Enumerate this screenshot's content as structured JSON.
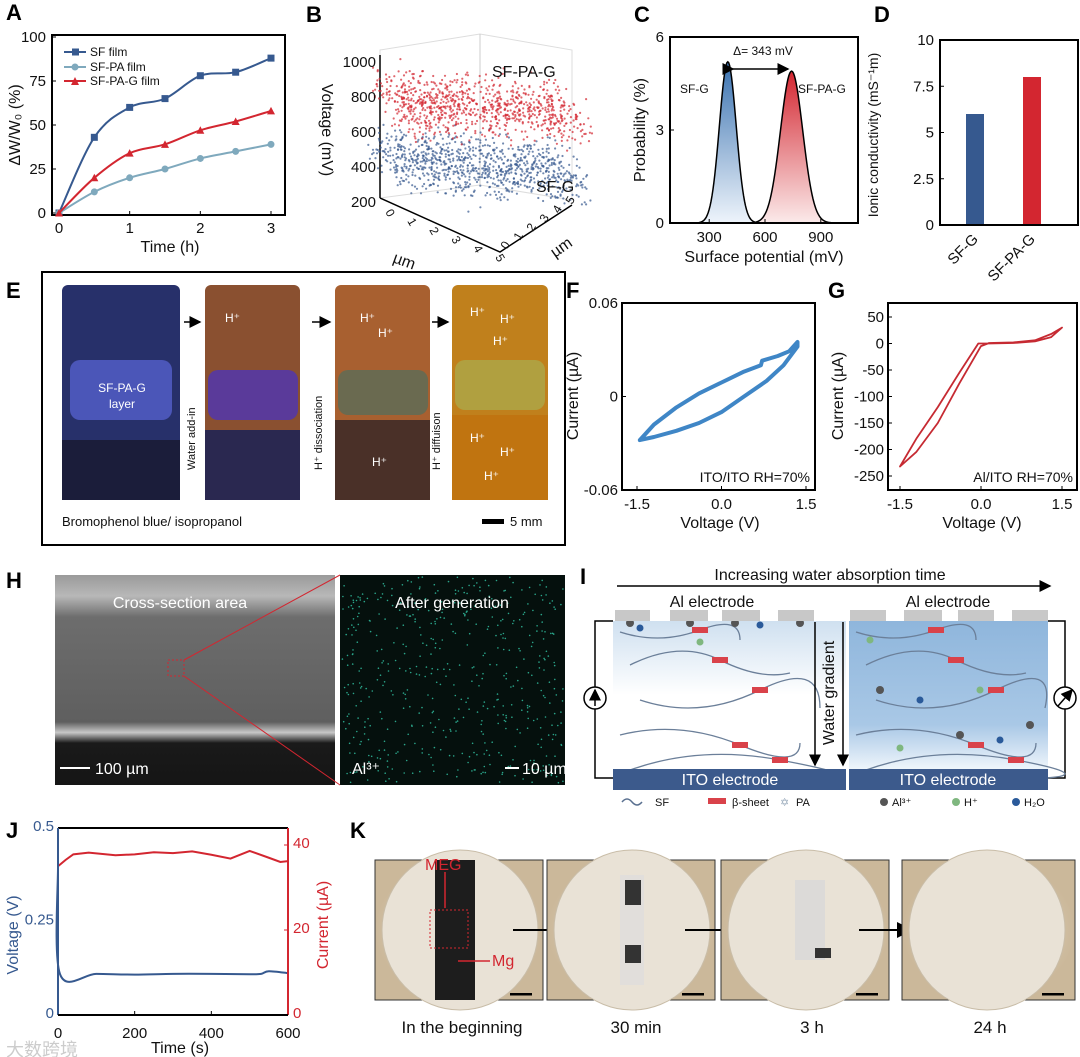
{
  "panel_labels": [
    "A",
    "B",
    "C",
    "D",
    "E",
    "F",
    "G",
    "H",
    "I",
    "J",
    "K"
  ],
  "colors": {
    "blue": "#36598f",
    "lightblue": "#7fa9bd",
    "red": "#d32630",
    "fblue": "#3f86c6",
    "gred": "#c62a32",
    "ito": "#3c5a8c"
  },
  "chart_data": [
    {
      "id": "A",
      "type": "line",
      "xlabel": "Time (h)",
      "ylabel": "ΔW/W₀ (%)",
      "xlim": [
        0,
        3
      ],
      "ylim": [
        0,
        100
      ],
      "xticks": [
        "0",
        "1",
        "2",
        "3"
      ],
      "yticks": [
        "0",
        "25",
        "50",
        "75",
        "100"
      ],
      "legend": "top-left",
      "x": [
        0,
        0.5,
        1,
        1.5,
        2,
        2.5,
        3
      ],
      "series": [
        {
          "name": "SF film",
          "color": "#36598f",
          "marker": "square",
          "values": [
            0,
            43,
            60,
            65,
            78,
            80,
            88
          ]
        },
        {
          "name": "SF-PA film",
          "color": "#7fa9bd",
          "marker": "circle",
          "values": [
            0,
            12,
            20,
            25,
            31,
            35,
            39
          ]
        },
        {
          "name": "SF-PA-G film",
          "color": "#d32630",
          "marker": "triangle",
          "values": [
            0,
            20,
            34,
            39,
            47,
            52,
            58
          ]
        }
      ]
    },
    {
      "id": "B",
      "type": "scatter",
      "zlabel": "Voltage (mV)",
      "xlabel": "µm",
      "ylabel": "µm",
      "zticks": [
        "200",
        "400",
        "600",
        "800",
        "1000"
      ],
      "xticks": [
        "0",
        "1",
        "2",
        "3",
        "4",
        "5"
      ],
      "yticks": [
        "0",
        "1",
        "2",
        "3",
        "4",
        "5"
      ],
      "series": [
        {
          "name": "SF-PA-G",
          "color": "#d32630",
          "center_mv": 740
        },
        {
          "name": "SF-G",
          "color": "#36598f",
          "center_mv": 400
        }
      ]
    },
    {
      "id": "C",
      "type": "area",
      "xlabel": "Surface potential (mV)",
      "ylabel": "Probability (%)",
      "xlim": [
        100,
        1100
      ],
      "ylim": [
        0,
        6
      ],
      "xticks": [
        "300",
        "600",
        "900"
      ],
      "yticks": [
        "0",
        "3",
        "6"
      ],
      "annotation": "Δ= 343 mV",
      "series": [
        {
          "name": "SF-G",
          "peak_mv": 400,
          "peak_prob": 5.2,
          "sigma_mv": 45,
          "color": "#3a72b0"
        },
        {
          "name": "SF-PA-G",
          "peak_mv": 743,
          "peak_prob": 4.9,
          "sigma_mv": 60,
          "color": "#d32630"
        }
      ]
    },
    {
      "id": "D",
      "type": "bar",
      "ylabel": "Ionic conductivity (mS⁻¹m)",
      "ylim": [
        0,
        10
      ],
      "yticks": [
        "0",
        "2.5",
        "5",
        "7.5",
        "10"
      ],
      "categories": [
        "SF-G",
        "SF-PA-G"
      ],
      "values": [
        6.0,
        8.0
      ],
      "colors": [
        "#36598f",
        "#d32630"
      ]
    },
    {
      "id": "F",
      "type": "line",
      "xlabel": "Voltage (V)",
      "ylabel": "Current (µA)",
      "xlim": [
        -1.7,
        1.7
      ],
      "ylim": [
        -0.06,
        0.06
      ],
      "xticks": [
        "-1.5",
        "0.0",
        "1.5"
      ],
      "yticks": [
        "-0.06",
        "0",
        "0.06"
      ],
      "annotation": "ITO/ITO RH=70%",
      "series": [
        {
          "name": "loop",
          "color": "#3f86c6",
          "x": [
            -1.45,
            -1.2,
            -0.8,
            -0.4,
            0,
            0.4,
            0.7,
            0.72,
            1.0,
            1.2,
            1.35,
            1.35,
            1.1,
            0.8,
            0.4,
            0,
            -0.4,
            -0.8,
            -1.2,
            -1.45
          ],
          "y": [
            -0.028,
            -0.018,
            -0.007,
            0.002,
            0.009,
            0.016,
            0.02,
            0.023,
            0.026,
            0.029,
            0.035,
            0.032,
            0.02,
            0.01,
            0.0,
            -0.01,
            -0.017,
            -0.022,
            -0.026,
            -0.028
          ]
        }
      ]
    },
    {
      "id": "G",
      "type": "line",
      "xlabel": "Voltage (V)",
      "ylabel": "Current (µA)",
      "xlim": [
        -1.7,
        1.7
      ],
      "ylim": [
        -278,
        75
      ],
      "xticks": [
        "-1.5",
        "0.0",
        "1.5"
      ],
      "yticks": [
        "50",
        "0",
        "-50",
        "-100",
        "-150",
        "-200",
        "-250"
      ],
      "annotation": "Al/ITO RH=70%",
      "series": [
        {
          "name": "loop",
          "color": "#c62a32",
          "x": [
            -1.5,
            -1.2,
            -0.8,
            -0.4,
            -0.05,
            0.15,
            0.6,
            1.0,
            1.3,
            1.5,
            1.3,
            1.0,
            0.6,
            0.15,
            0.0,
            -0.4,
            -0.8,
            -1.2,
            -1.5
          ],
          "y": [
            -232,
            -180,
            -120,
            -55,
            0,
            0,
            1,
            4,
            12,
            30,
            18,
            6,
            2,
            1,
            -5,
            -75,
            -150,
            -205,
            -232
          ]
        }
      ]
    },
    {
      "id": "J",
      "type": "line",
      "xlabel": "Time (s)",
      "ylabel": "Voltage (V)",
      "y2label": "Current (µA)",
      "xlim": [
        0,
        600
      ],
      "ylim": [
        0,
        0.5
      ],
      "y2lim": [
        0,
        44
      ],
      "xticks": [
        "0",
        "200",
        "400",
        "600"
      ],
      "yticks": [
        "0",
        "0.25",
        "0.5"
      ],
      "y2ticks": [
        "0",
        "20",
        "40"
      ],
      "series": [
        {
          "name": "Voltage",
          "axis": "left",
          "color": "#36598f",
          "x": [
            0,
            5,
            100,
            200,
            300,
            400,
            500,
            530,
            550,
            600
          ],
          "values": [
            0.4,
            0.11,
            0.11,
            0.108,
            0.11,
            0.11,
            0.109,
            0.11,
            0.117,
            0.112
          ]
        },
        {
          "name": "Current",
          "axis": "right",
          "color": "#d32630",
          "x": [
            0,
            20,
            40,
            80,
            150,
            200,
            250,
            300,
            350,
            400,
            450,
            500,
            550,
            580,
            600
          ],
          "values": [
            35,
            36.5,
            37.8,
            38.2,
            37.6,
            37.8,
            38.3,
            38.1,
            38.5,
            37.7,
            36.8,
            38.6,
            37,
            36,
            36.2
          ]
        }
      ]
    }
  ],
  "panel_e": {
    "layer": "SF-PA-G",
    "layer2": "layer",
    "h": "H⁺",
    "step1": "Water add-in",
    "step2": "H⁺ dissociation",
    "step3": "H⁺ diffuison",
    "caption": "Bromophenol blue/ isopropanol",
    "scale": "5 mm"
  },
  "panel_h": {
    "left_title": "Cross-section area",
    "left_scale": "100 µm",
    "right_title": "After generation",
    "right_ion": "Al³⁺",
    "right_scale": "10 µm"
  },
  "panel_i": {
    "top": "Increasing water absorption time",
    "electrode_top": "Al electrode",
    "electrode_bottom": "ITO electrode",
    "gradient": "Water gradient",
    "legend": [
      "SF",
      "β-sheet",
      "PA",
      "Al³⁺",
      "H⁺",
      "H₂O"
    ]
  },
  "panel_k": {
    "meg": "MEG",
    "mg": "Mg",
    "captions": [
      "In the beginning",
      "30 min",
      "3 h",
      "24 h"
    ]
  },
  "watermark": "大数跨境"
}
